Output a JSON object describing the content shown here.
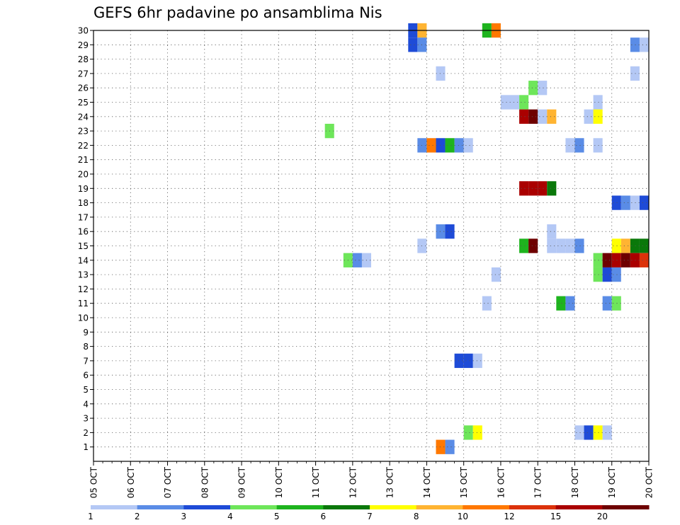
{
  "title": "GEFS 6hr padavine po ansamblima Nis",
  "chart_data": {
    "type": "heatmap",
    "title": "GEFS 6hr padavine po ansamblima Nis",
    "x_tick_labels": [
      "05 OCT",
      "06 OCT",
      "07 OCT",
      "08 OCT",
      "09 OCT",
      "10 OCT",
      "11 OCT",
      "12 OCT",
      "13 OCT",
      "14 OCT",
      "15 OCT",
      "16 OCT",
      "17 OCT",
      "18 OCT",
      "19 OCT",
      "20 OCT"
    ],
    "y_tick_labels": [
      "1",
      "2",
      "3",
      "4",
      "5",
      "6",
      "7",
      "8",
      "9",
      "10",
      "11",
      "12",
      "13",
      "14",
      "15",
      "16",
      "17",
      "18",
      "19",
      "20",
      "21",
      "22",
      "23",
      "24",
      "25",
      "26",
      "27",
      "28",
      "29",
      "30"
    ],
    "xlim": [
      "05 OCT",
      "20 OCT"
    ],
    "ylim": [
      0,
      30
    ],
    "x_step_hours": 6,
    "grid": "dotted",
    "color_levels": [
      1,
      2,
      3,
      4,
      5,
      6,
      7,
      8,
      10,
      12,
      15,
      20
    ],
    "colors": [
      "#b4c8f5",
      "#5a8ce6",
      "#1e4bd7",
      "#6ee65a",
      "#1eb41e",
      "#0a780a",
      "#ffff00",
      "#ffb432",
      "#ff7800",
      "#dc320a",
      "#aa0000",
      "#6e0000"
    ],
    "cells": [
      {
        "x": "13 OCT 12Z",
        "y": 30,
        "level": 3
      },
      {
        "x": "13 OCT 18Z",
        "y": 30,
        "level": 8
      },
      {
        "x": "15 OCT 12Z",
        "y": 30,
        "level": 5
      },
      {
        "x": "15 OCT 18Z",
        "y": 30,
        "level": 10
      },
      {
        "x": "13 OCT 12Z",
        "y": 29,
        "level": 3
      },
      {
        "x": "13 OCT 18Z",
        "y": 29,
        "level": 2
      },
      {
        "x": "19 OCT 12Z",
        "y": 29,
        "level": 2
      },
      {
        "x": "19 OCT 18Z",
        "y": 29,
        "level": 1
      },
      {
        "x": "14 OCT 06Z",
        "y": 27,
        "level": 1
      },
      {
        "x": "19 OCT 12Z",
        "y": 27,
        "level": 1
      },
      {
        "x": "16 OCT 18Z",
        "y": 26,
        "level": 4
      },
      {
        "x": "17 OCT 00Z",
        "y": 26,
        "level": 1
      },
      {
        "x": "16 OCT 00Z",
        "y": 25,
        "level": 1
      },
      {
        "x": "16 OCT 06Z",
        "y": 25,
        "level": 1
      },
      {
        "x": "16 OCT 12Z",
        "y": 25,
        "level": 4
      },
      {
        "x": "18 OCT 12Z",
        "y": 25,
        "level": 1
      },
      {
        "x": "16 OCT 12Z",
        "y": 24,
        "level": 15
      },
      {
        "x": "16 OCT 18Z",
        "y": 24,
        "level": 20
      },
      {
        "x": "17 OCT 00Z",
        "y": 24,
        "level": 1
      },
      {
        "x": "17 OCT 06Z",
        "y": 24,
        "level": 8
      },
      {
        "x": "18 OCT 06Z",
        "y": 24,
        "level": 1
      },
      {
        "x": "18 OCT 12Z",
        "y": 24,
        "level": 7
      },
      {
        "x": "11 OCT 06Z",
        "y": 23,
        "level": 4
      },
      {
        "x": "13 OCT 18Z",
        "y": 22,
        "level": 2
      },
      {
        "x": "14 OCT 00Z",
        "y": 22,
        "level": 10
      },
      {
        "x": "14 OCT 06Z",
        "y": 22,
        "level": 3
      },
      {
        "x": "14 OCT 12Z",
        "y": 22,
        "level": 5
      },
      {
        "x": "14 OCT 18Z",
        "y": 22,
        "level": 2
      },
      {
        "x": "15 OCT 00Z",
        "y": 22,
        "level": 1
      },
      {
        "x": "17 OCT 18Z",
        "y": 22,
        "level": 1
      },
      {
        "x": "18 OCT 00Z",
        "y": 22,
        "level": 2
      },
      {
        "x": "18 OCT 12Z",
        "y": 22,
        "level": 1
      },
      {
        "x": "16 OCT 12Z",
        "y": 19,
        "level": 15
      },
      {
        "x": "16 OCT 18Z",
        "y": 19,
        "level": 15
      },
      {
        "x": "17 OCT 00Z",
        "y": 19,
        "level": 15
      },
      {
        "x": "17 OCT 06Z",
        "y": 19,
        "level": 6
      },
      {
        "x": "19 OCT 00Z",
        "y": 18,
        "level": 3
      },
      {
        "x": "19 OCT 06Z",
        "y": 18,
        "level": 2
      },
      {
        "x": "19 OCT 12Z",
        "y": 18,
        "level": 1
      },
      {
        "x": "19 OCT 18Z",
        "y": 18,
        "level": 3
      },
      {
        "x": "14 OCT 06Z",
        "y": 16,
        "level": 2
      },
      {
        "x": "14 OCT 12Z",
        "y": 16,
        "level": 3
      },
      {
        "x": "17 OCT 06Z",
        "y": 16,
        "level": 1
      },
      {
        "x": "13 OCT 18Z",
        "y": 15,
        "level": 1
      },
      {
        "x": "16 OCT 12Z",
        "y": 15,
        "level": 5
      },
      {
        "x": "16 OCT 18Z",
        "y": 15,
        "level": 20
      },
      {
        "x": "17 OCT 06Z",
        "y": 15,
        "level": 1
      },
      {
        "x": "17 OCT 12Z",
        "y": 15,
        "level": 1
      },
      {
        "x": "17 OCT 18Z",
        "y": 15,
        "level": 1
      },
      {
        "x": "18 OCT 00Z",
        "y": 15,
        "level": 2
      },
      {
        "x": "19 OCT 00Z",
        "y": 15,
        "level": 7
      },
      {
        "x": "19 OCT 06Z",
        "y": 15,
        "level": 8
      },
      {
        "x": "19 OCT 12Z",
        "y": 15,
        "level": 6
      },
      {
        "x": "19 OCT 18Z",
        "y": 15,
        "level": 6
      },
      {
        "x": "11 OCT 18Z",
        "y": 14,
        "level": 4
      },
      {
        "x": "12 OCT 00Z",
        "y": 14,
        "level": 2
      },
      {
        "x": "12 OCT 06Z",
        "y": 14,
        "level": 1
      },
      {
        "x": "18 OCT 12Z",
        "y": 14,
        "level": 4
      },
      {
        "x": "18 OCT 18Z",
        "y": 14,
        "level": 20
      },
      {
        "x": "19 OCT 00Z",
        "y": 14,
        "level": 15
      },
      {
        "x": "19 OCT 06Z",
        "y": 14,
        "level": 20
      },
      {
        "x": "19 OCT 12Z",
        "y": 14,
        "level": 15
      },
      {
        "x": "19 OCT 18Z",
        "y": 14,
        "level": 12
      },
      {
        "x": "15 OCT 18Z",
        "y": 13,
        "level": 1
      },
      {
        "x": "18 OCT 12Z",
        "y": 13,
        "level": 4
      },
      {
        "x": "18 OCT 18Z",
        "y": 13,
        "level": 3
      },
      {
        "x": "19 OCT 00Z",
        "y": 13,
        "level": 2
      },
      {
        "x": "15 OCT 12Z",
        "y": 11,
        "level": 1
      },
      {
        "x": "17 OCT 12Z",
        "y": 11,
        "level": 5
      },
      {
        "x": "17 OCT 18Z",
        "y": 11,
        "level": 2
      },
      {
        "x": "18 OCT 18Z",
        "y": 11,
        "level": 2
      },
      {
        "x": "19 OCT 00Z",
        "y": 11,
        "level": 4
      },
      {
        "x": "14 OCT 18Z",
        "y": 7,
        "level": 3
      },
      {
        "x": "15 OCT 00Z",
        "y": 7,
        "level": 3
      },
      {
        "x": "15 OCT 06Z",
        "y": 7,
        "level": 1
      },
      {
        "x": "15 OCT 00Z",
        "y": 2,
        "level": 4
      },
      {
        "x": "15 OCT 06Z",
        "y": 2,
        "level": 7
      },
      {
        "x": "18 OCT 00Z",
        "y": 2,
        "level": 1
      },
      {
        "x": "18 OCT 06Z",
        "y": 2,
        "level": 3
      },
      {
        "x": "18 OCT 12Z",
        "y": 2,
        "level": 7
      },
      {
        "x": "18 OCT 18Z",
        "y": 2,
        "level": 1
      },
      {
        "x": "14 OCT 06Z",
        "y": 1,
        "level": 10
      },
      {
        "x": "14 OCT 12Z",
        "y": 1,
        "level": 2
      }
    ],
    "legend": {
      "labels": [
        "1",
        "2",
        "3",
        "4",
        "5",
        "6",
        "7",
        "8",
        "10",
        "12",
        "15",
        "20"
      ],
      "placement": "bottom"
    }
  }
}
